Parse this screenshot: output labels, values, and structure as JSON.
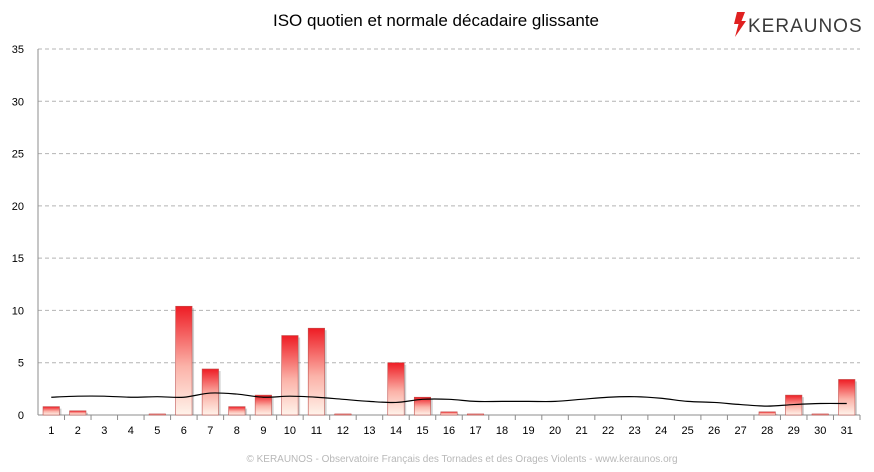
{
  "brand": {
    "name": "KERAUNOS",
    "accent": "#e02020"
  },
  "footer": {
    "text": "© KERAUNOS - Observatoire Français des Tornades et des Orages Violents - www.keraunos.org"
  },
  "chart_data": {
    "type": "bar",
    "title": "ISO quotien et normale décadaire glissante",
    "xlabel": "",
    "ylabel": "",
    "ylim": [
      0,
      35
    ],
    "yticks": [
      0,
      5,
      10,
      15,
      20,
      25,
      30,
      35
    ],
    "grid": true,
    "categories": [
      "1",
      "2",
      "3",
      "4",
      "5",
      "6",
      "7",
      "8",
      "9",
      "10",
      "11",
      "12",
      "13",
      "14",
      "15",
      "16",
      "17",
      "18",
      "19",
      "20",
      "21",
      "22",
      "23",
      "24",
      "25",
      "26",
      "27",
      "28",
      "29",
      "30",
      "31"
    ],
    "series": [
      {
        "type": "bar",
        "color": "#ee1c24",
        "values": [
          0.8,
          0.4,
          0,
          0,
          0.1,
          10.4,
          4.4,
          0.8,
          1.9,
          7.6,
          8.3,
          0.1,
          0,
          5.0,
          1.7,
          0.3,
          0.1,
          0,
          0,
          0,
          0,
          0,
          0,
          0,
          0,
          0,
          0,
          0.3,
          1.9,
          0.1,
          3.4
        ]
      },
      {
        "type": "line",
        "color": "#000000",
        "values": [
          1.7,
          1.8,
          1.8,
          1.7,
          1.75,
          1.7,
          2.1,
          2.0,
          1.7,
          1.8,
          1.7,
          1.5,
          1.3,
          1.2,
          1.5,
          1.5,
          1.3,
          1.3,
          1.3,
          1.3,
          1.5,
          1.7,
          1.75,
          1.6,
          1.3,
          1.2,
          1.0,
          0.85,
          1.0,
          1.1,
          1.1
        ]
      }
    ]
  }
}
